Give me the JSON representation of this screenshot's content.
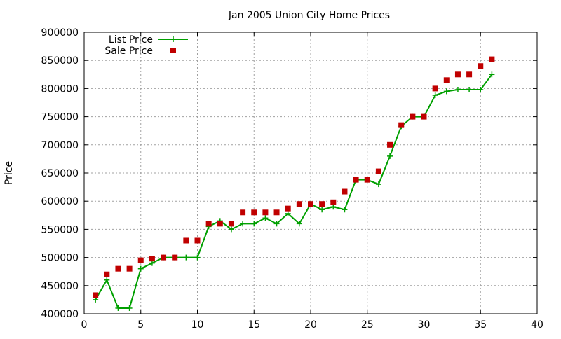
{
  "chart_data": {
    "type": "scatter",
    "title": "Jan 2005 Union City Home Prices",
    "xlabel": "",
    "ylabel": "Price",
    "xlim": [
      0,
      40
    ],
    "ylim": [
      400000,
      900000
    ],
    "xticks": [
      "0",
      "5",
      "10",
      "15",
      "20",
      "25",
      "30",
      "35",
      "40"
    ],
    "yticks": [
      "400000",
      "450000",
      "500000",
      "550000",
      "600000",
      "650000",
      "700000",
      "750000",
      "800000",
      "850000",
      "900000"
    ],
    "grid": true,
    "legend_position": "top-left",
    "series": [
      {
        "name": "List Price",
        "style": "linespoints",
        "color": "#00a000",
        "x": [
          1,
          2,
          3,
          4,
          5,
          6,
          7,
          8,
          9,
          10,
          11,
          12,
          13,
          14,
          15,
          16,
          17,
          18,
          19,
          20,
          21,
          22,
          23,
          24,
          25,
          26,
          27,
          28,
          29,
          30,
          31,
          32,
          33,
          34,
          35,
          36
        ],
        "y": [
          425000,
          460000,
          410000,
          410000,
          480000,
          490000,
          500000,
          500000,
          500000,
          500000,
          555000,
          565000,
          550000,
          560000,
          560000,
          570000,
          560000,
          578000,
          560000,
          595000,
          585000,
          590000,
          585000,
          638000,
          638000,
          630000,
          680000,
          733000,
          750000,
          750000,
          788000,
          795000,
          798000,
          798000,
          798000,
          825000
        ]
      },
      {
        "name": "Sale Price",
        "style": "points",
        "color": "#c00000",
        "x": [
          1,
          2,
          3,
          4,
          5,
          6,
          7,
          8,
          9,
          10,
          11,
          12,
          13,
          14,
          15,
          16,
          17,
          18,
          19,
          20,
          21,
          22,
          23,
          24,
          25,
          26,
          27,
          28,
          29,
          30,
          31,
          32,
          33,
          34,
          35,
          36
        ],
        "y": [
          433000,
          470000,
          480000,
          480000,
          495000,
          498000,
          500000,
          500000,
          530000,
          530000,
          560000,
          560000,
          560000,
          580000,
          580000,
          580000,
          580000,
          587000,
          595000,
          595000,
          595000,
          598000,
          617000,
          638000,
          638000,
          653000,
          700000,
          735000,
          750000,
          750000,
          800000,
          815000,
          825000,
          825000,
          840000,
          852000
        ]
      }
    ]
  }
}
